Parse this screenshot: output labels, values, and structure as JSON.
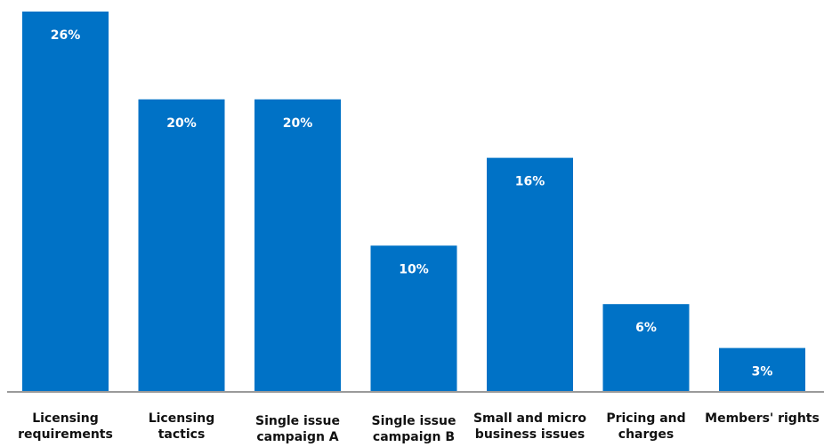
{
  "chart_data": {
    "type": "bar",
    "categories": [
      [
        "Licensing",
        "requirements"
      ],
      [
        "Licensing",
        "tactics"
      ],
      [
        "Single issue",
        "campaign A"
      ],
      [
        "Single issue",
        "campaign B"
      ],
      [
        "Small and micro",
        "business issues"
      ],
      [
        "Pricing and",
        "charges"
      ],
      [
        "Members' rights"
      ]
    ],
    "values": [
      26,
      20,
      20,
      10,
      16,
      6,
      3
    ],
    "value_labels": [
      "26%",
      "20%",
      "20%",
      "10%",
      "16%",
      "6%",
      "3%"
    ],
    "ylim": [
      0,
      26
    ],
    "grid": false,
    "colors": {
      "bar": "#0072c6",
      "axis": "#9a9a9a"
    }
  }
}
